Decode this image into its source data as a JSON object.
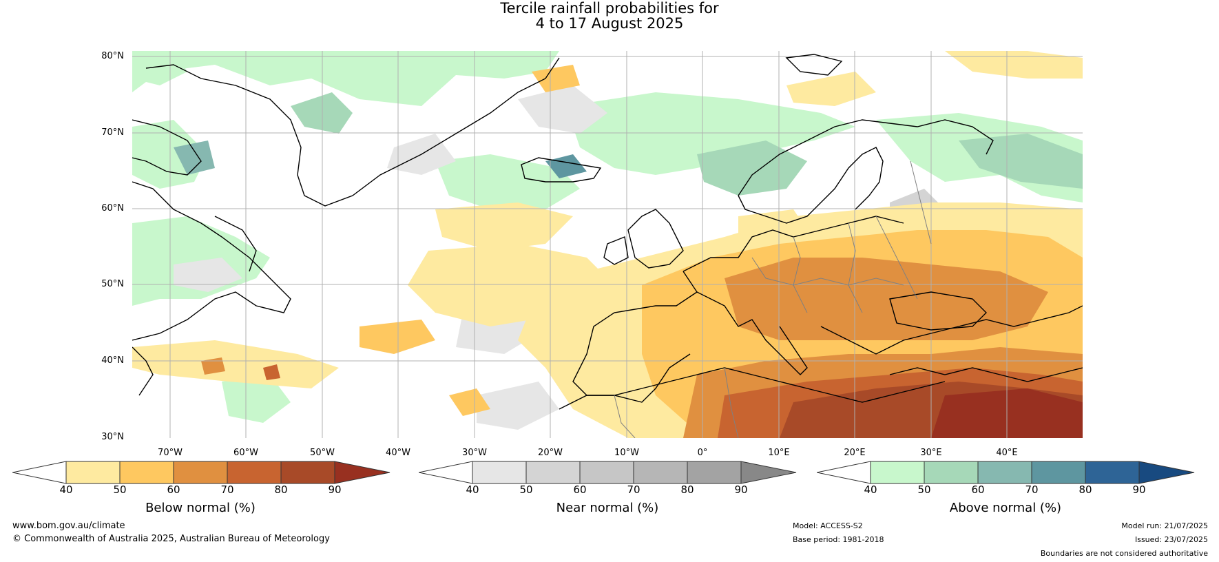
{
  "title": {
    "line1": "Tercile rainfall probabilities for",
    "line2": "4 to 17 August 2025"
  },
  "map": {
    "lat_labels": [
      "80°N",
      "70°N",
      "60°N",
      "50°N",
      "40°N",
      "30°N"
    ],
    "lon_labels": [
      "70°W",
      "60°W",
      "50°W",
      "40°W",
      "30°W",
      "20°W",
      "10°W",
      "0°",
      "10°E",
      "20°E",
      "30°E",
      "40°E"
    ],
    "coastline_color": "#000000",
    "border_color": "#808080",
    "grid_color": "#b0b0b0"
  },
  "colorbars": [
    {
      "title": "Below normal (%)",
      "ticks": [
        "40",
        "50",
        "60",
        "70",
        "80",
        "90"
      ],
      "colors": [
        "#ffffff",
        "#feeaa0",
        "#fec860",
        "#e09040",
        "#c86430",
        "#a84a28",
        "#983020"
      ]
    },
    {
      "title": "Near normal (%)",
      "ticks": [
        "40",
        "50",
        "60",
        "70",
        "80",
        "90"
      ],
      "colors": [
        "#ffffff",
        "#e6e6e6",
        "#d4d4d4",
        "#c6c6c6",
        "#b6b6b6",
        "#a3a3a3",
        "#888888"
      ]
    },
    {
      "title": "Above normal (%)",
      "ticks": [
        "40",
        "50",
        "60",
        "70",
        "80",
        "90"
      ],
      "colors": [
        "#ffffff",
        "#c8f7cc",
        "#a6d8b8",
        "#86b8b0",
        "#5e96a0",
        "#2e6496",
        "#184a80"
      ]
    }
  ],
  "footer": {
    "website": "www.bom.gov.au/climate",
    "copyright": "© Commonwealth of Australia 2025, Australian Bureau of Meteorology",
    "model": "Model: ACCESS-S2",
    "base_period": "Base period: 1981-2018",
    "model_run": "Model run: 21/07/2025",
    "issued": "Issued: 23/07/2025",
    "disclaimer": "Boundaries are not considered authoritative"
  }
}
